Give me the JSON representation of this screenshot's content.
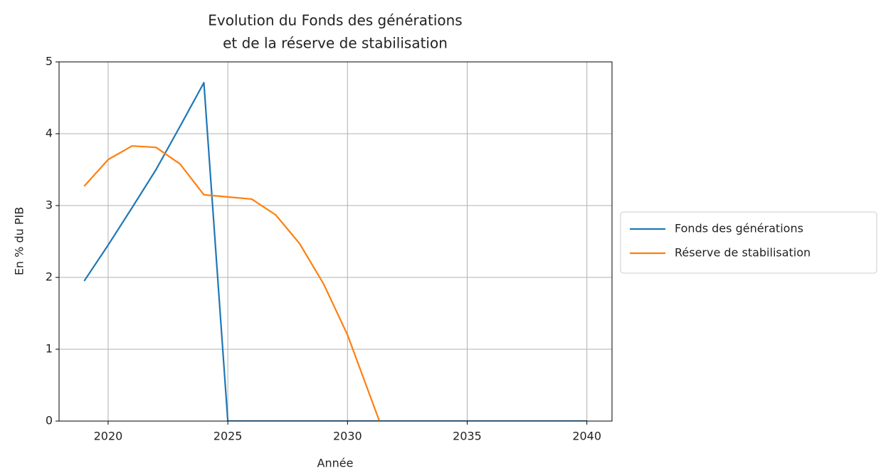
{
  "chart_data": {
    "type": "line",
    "title": [
      "Evolution du Fonds des générations",
      "et de la réserve de stabilisation"
    ],
    "x_label": "Année",
    "y_label": "En % du PIB",
    "x": [
      2019,
      2020,
      2021,
      2022,
      2023,
      2024,
      2025,
      2026,
      2027,
      2028,
      2029,
      2030,
      2031,
      2032,
      2033,
      2034,
      2035,
      2036,
      2037,
      2038,
      2039,
      2040
    ],
    "series": [
      {
        "name": "Fonds des générations",
        "color": "#1f77b4",
        "values": [
          1.95,
          2.45,
          2.97,
          3.5,
          4.1,
          4.71,
          0,
          0,
          0,
          0,
          0,
          0,
          0,
          0,
          0,
          0,
          0,
          0,
          0,
          0,
          0,
          0
        ]
      },
      {
        "name": "Réserve de stabilisation",
        "color": "#ff7f0e",
        "values": [
          3.27,
          3.64,
          3.83,
          3.81,
          3.58,
          3.15,
          3.12,
          3.09,
          2.87,
          2.47,
          1.91,
          1.2,
          0.3,
          -0.6,
          null,
          null,
          null,
          null,
          null,
          null,
          null,
          null
        ]
      }
    ],
    "xlim": [
      2017.95,
      2041.05
    ],
    "xticks": [
      2020,
      2025,
      2030,
      2035,
      2040
    ],
    "ylim": [
      0,
      5
    ],
    "yticks": [
      0,
      1,
      2,
      3,
      4,
      5
    ],
    "grid": true,
    "legend": "right"
  }
}
